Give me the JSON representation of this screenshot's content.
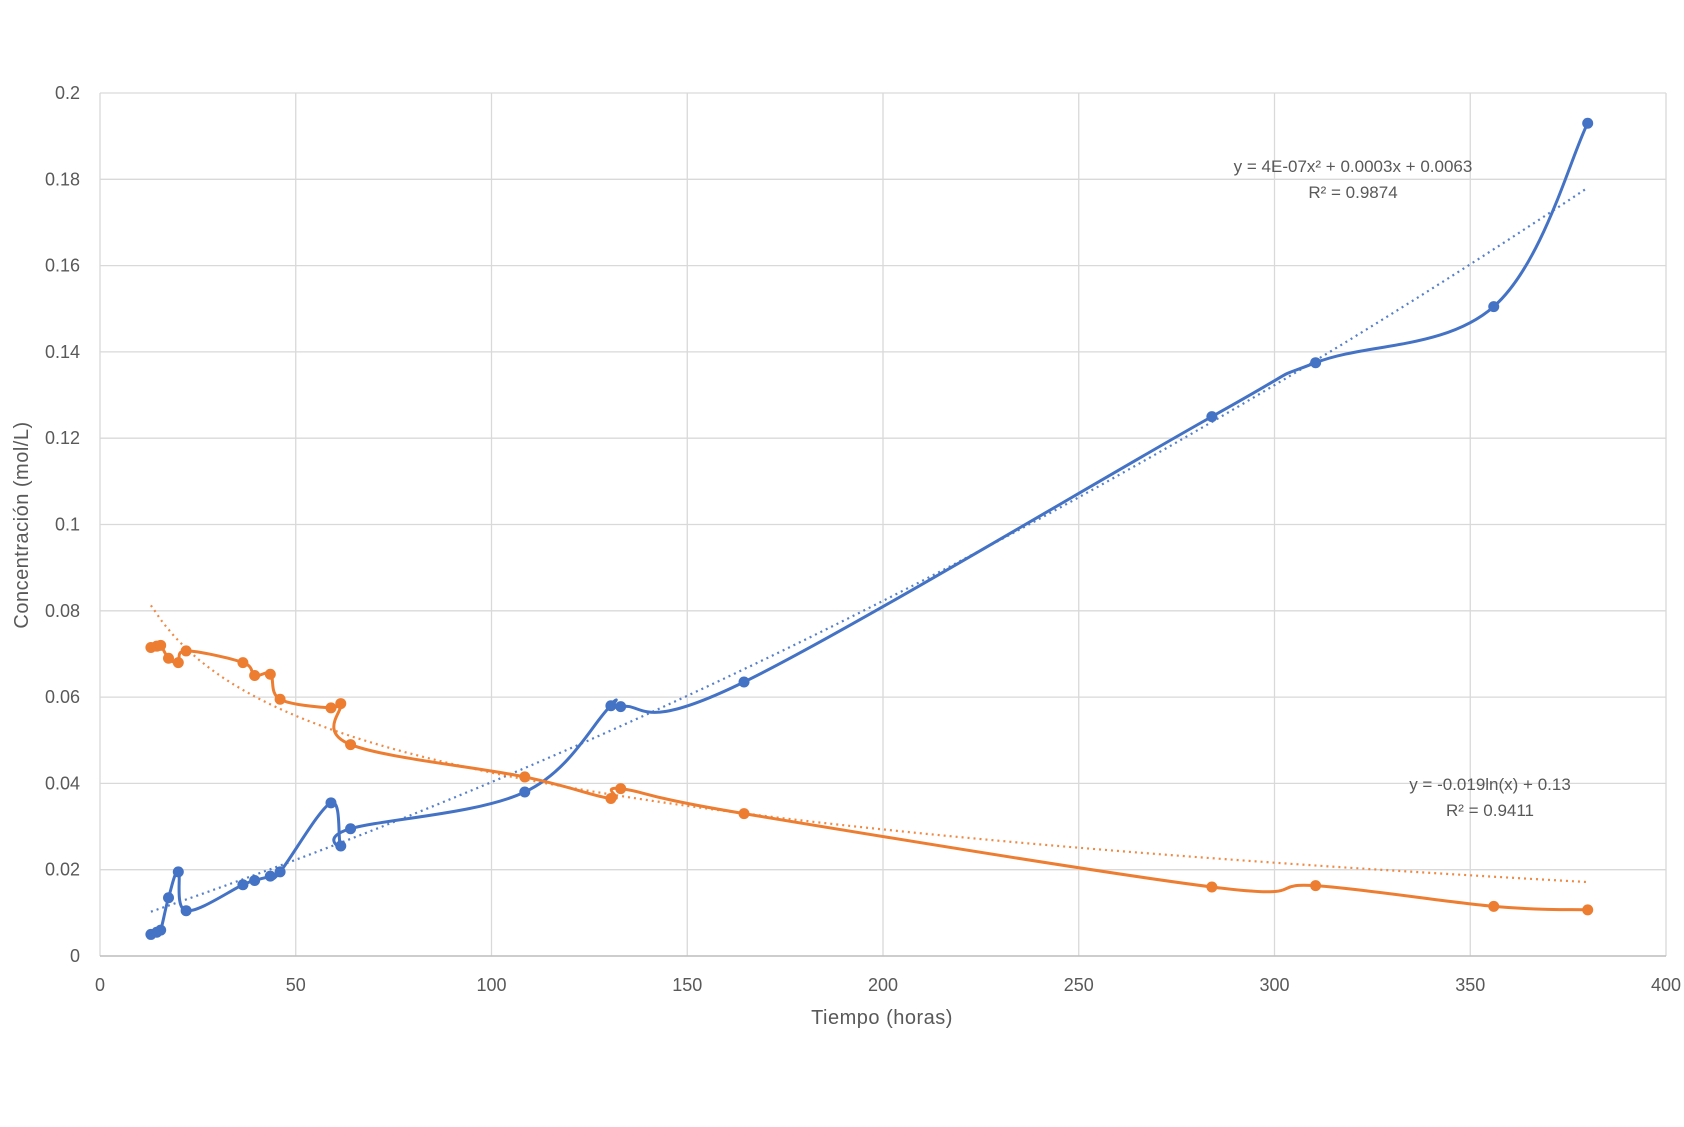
{
  "chart_data": {
    "type": "line",
    "title": "",
    "xlabel": "Tiempo (horas)",
    "ylabel": "Concentración (mol/L)",
    "xlim": [
      0,
      400
    ],
    "ylim": [
      0,
      0.2
    ],
    "x_ticks": [
      "0",
      "50",
      "100",
      "150",
      "200",
      "250",
      "300",
      "350",
      "400"
    ],
    "y_ticks": [
      "0",
      "0.02",
      "0.04",
      "0.06",
      "0.08",
      "0.1",
      "0.12",
      "0.14",
      "0.16",
      "0.18",
      "0.2"
    ],
    "grid": true,
    "series": [
      {
        "color": "#4472C4",
        "points": [
          [
            13,
            0.005
          ],
          [
            14.5,
            0.0055
          ],
          [
            15.5,
            0.006
          ],
          [
            17.5,
            0.0135
          ],
          [
            20,
            0.0195
          ],
          [
            22,
            0.0105
          ],
          [
            36.5,
            0.0165
          ],
          [
            39.5,
            0.0175
          ],
          [
            43.5,
            0.0185
          ],
          [
            46,
            0.0195
          ],
          [
            59,
            0.0355
          ],
          [
            61.5,
            0.0255
          ],
          [
            64,
            0.0295
          ],
          [
            108.5,
            0.038
          ],
          [
            130.5,
            0.058
          ],
          [
            133,
            0.0578
          ],
          [
            164.5,
            0.0635
          ],
          [
            284,
            0.125
          ],
          [
            310.5,
            0.1375
          ],
          [
            356,
            0.1505
          ],
          [
            380,
            0.193
          ]
        ],
        "trendline": {
          "kind": "polynomial",
          "label": "y = 4E-07x² + 0.0003x + 0.0063",
          "r2": "R² = 0.9874",
          "coef": [
            4e-07,
            0.0003,
            0.0063
          ]
        }
      },
      {
        "color": "#ED7D31",
        "points": [
          [
            13,
            0.0715
          ],
          [
            14.5,
            0.0718
          ],
          [
            15.5,
            0.072
          ],
          [
            17.5,
            0.069
          ],
          [
            20,
            0.068
          ],
          [
            22,
            0.0707
          ],
          [
            36.5,
            0.068
          ],
          [
            39.5,
            0.065
          ],
          [
            43.5,
            0.0653
          ],
          [
            46,
            0.0595
          ],
          [
            59,
            0.0575
          ],
          [
            61.5,
            0.0585
          ],
          [
            64,
            0.049
          ],
          [
            108.5,
            0.0415
          ],
          [
            130.5,
            0.0365
          ],
          [
            133,
            0.0388
          ],
          [
            164.5,
            0.033
          ],
          [
            284,
            0.016
          ],
          [
            310.5,
            0.0163
          ],
          [
            356,
            0.0115
          ],
          [
            380,
            0.0107
          ]
        ],
        "trendline": {
          "kind": "logarithmic",
          "label": "y = -0.019ln(x) + 0.13",
          "r2": "R² = 0.9411",
          "coef": [
            -0.019,
            0.13
          ]
        }
      }
    ]
  }
}
